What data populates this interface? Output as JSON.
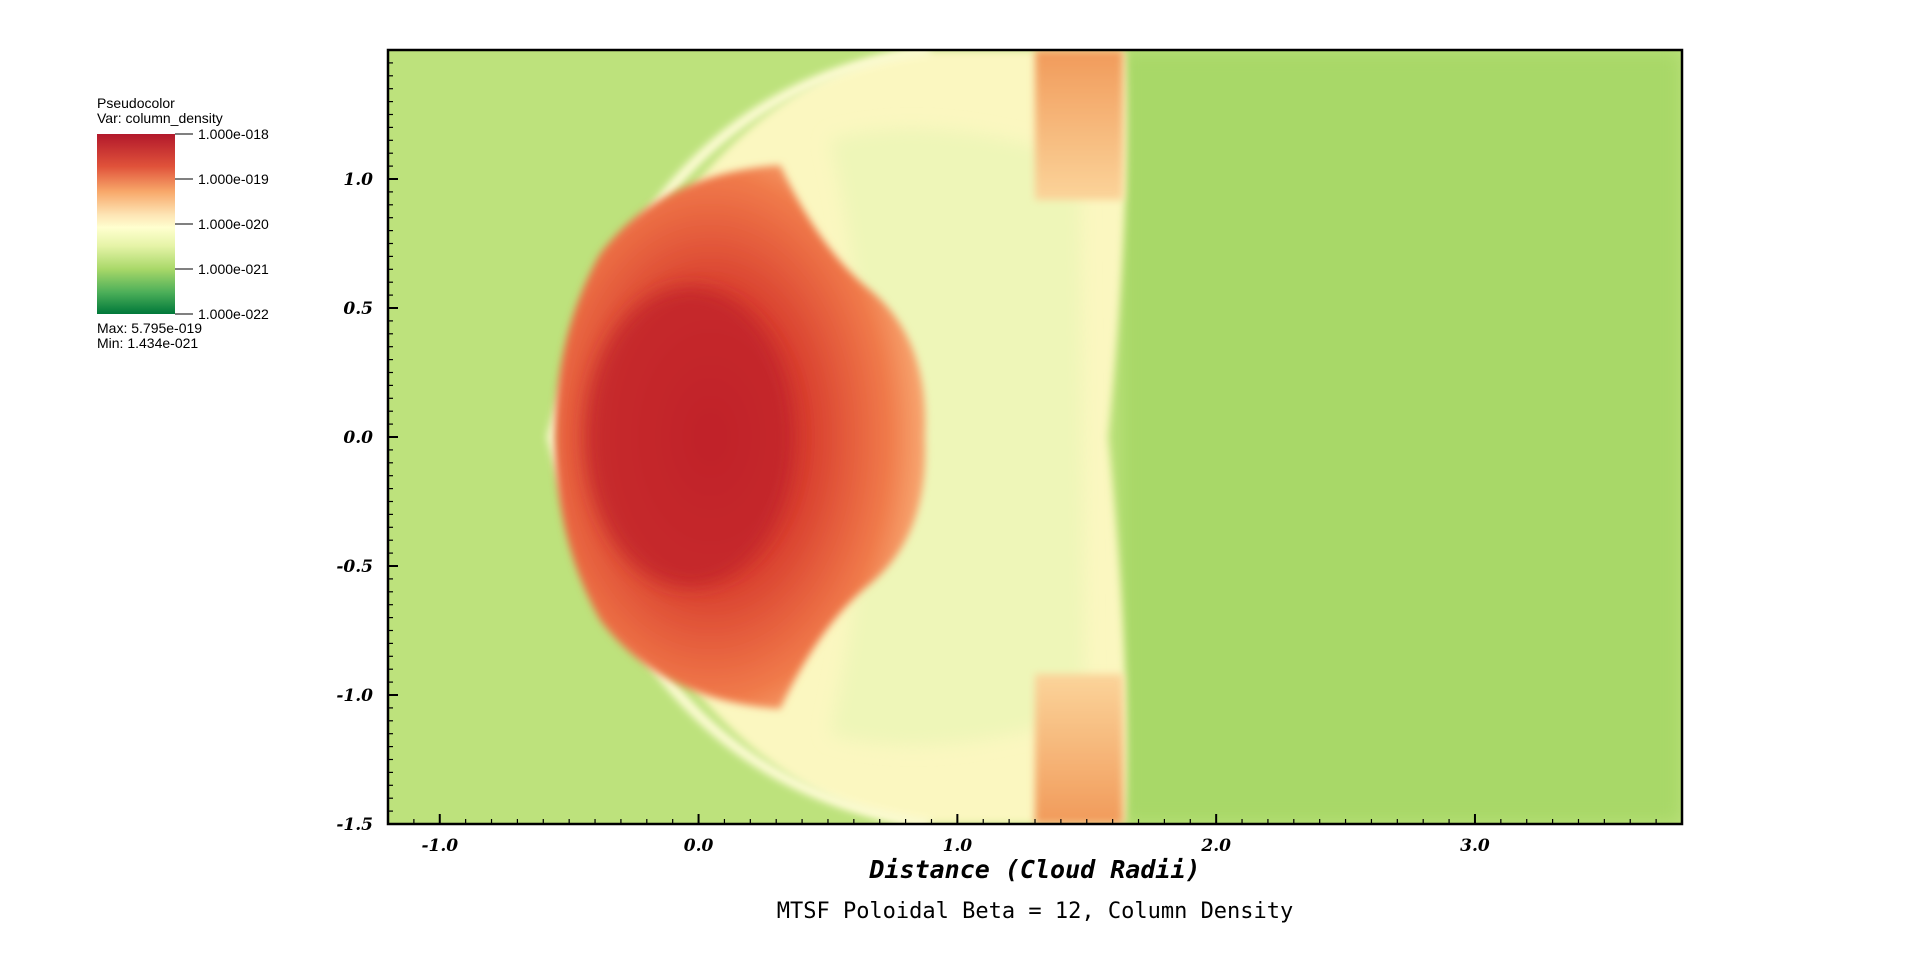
{
  "chart_data": {
    "type": "heatmap",
    "title": "MTSF Poloidal Beta = 12, Column Density",
    "xlabel": "Distance (Cloud Radii)",
    "ylabel": "",
    "xlim": [
      -1.2,
      3.8
    ],
    "ylim": [
      -1.5,
      1.5
    ],
    "xticks": [
      {
        "v": -1.0,
        "label": "-1.0"
      },
      {
        "v": 0.0,
        "label": "0.0"
      },
      {
        "v": 1.0,
        "label": "1.0"
      },
      {
        "v": 2.0,
        "label": "2.0"
      },
      {
        "v": 3.0,
        "label": "3.0"
      }
    ],
    "yticks": [
      {
        "v": 1.0,
        "label": "1.0"
      },
      {
        "v": 0.5,
        "label": "0.5"
      },
      {
        "v": 0.0,
        "label": "0.0"
      },
      {
        "v": -0.5,
        "label": "-0.5"
      },
      {
        "v": -1.0,
        "label": "-1.0"
      },
      {
        "v": -1.5,
        "label": "-1.5"
      }
    ],
    "legend": {
      "placement": "top-left",
      "heading": "Pseudocolor",
      "variable": "Var: column_density",
      "scale": "log",
      "labels": [
        "1.000e-018",
        "1.000e-019",
        "1.000e-020",
        "1.000e-021",
        "1.000e-022"
      ],
      "max_text": "Max:  5.795e-019",
      "min_text": "Min:  1.434e-021",
      "colors": [
        "#b2182b",
        "#ef8a62",
        "#fddbc7",
        "#ffffbf",
        "#d9ef8b",
        "#91cf60",
        "#1a9850",
        "#006837"
      ]
    },
    "field_colors": {
      "background": "#bde27c",
      "downstream": "#a8d868",
      "shell": "#ffffc8",
      "core": "#c62a28",
      "mid": "#f3864f",
      "tail_spot": "#f0a060"
    }
  }
}
